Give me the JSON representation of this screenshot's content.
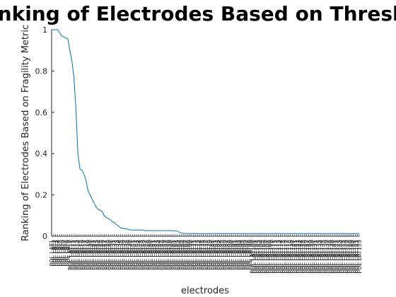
{
  "chart_data": {
    "type": "line",
    "title": "Ranking of Electrodes Based on Threshold",
    "xlabel": "electrodes",
    "ylabel": "Ranking of Electrodes Based on Fragility Metric",
    "ylim": [
      0,
      1
    ],
    "yticks": [
      "0",
      "0.2",
      "0.4",
      "0.6",
      "0.8",
      "1"
    ],
    "grid": false,
    "line_color": "#0072bd",
    "x_categories": [
      "POL LAT1",
      "POL LAT2",
      "POL LAT3",
      "POL LAT4",
      "POL LAT5",
      "POL LAT6",
      "POL LAT7",
      "POL LAT8",
      "POL LAT9",
      "POL LAT10",
      "POL LAT11",
      "POL LAT12",
      "POL LAT13",
      "POL LAT14",
      "POL LAT15",
      "POL LAT16",
      "POL LAT17",
      "POL LAT18",
      "POL LAT19",
      "POL LAT20",
      "POL LAT21",
      "POL LAT22",
      "POL LAT23",
      "POL LAT24",
      "POL LAT25",
      "POL LAT26",
      "POL LAT27",
      "POL LAT28",
      "POL LAT29",
      "POL LAT30",
      "POL LAT31",
      "POL LAT32",
      "POL LAT33",
      "POL LAT34",
      "POL LAT35",
      "POL LAT36",
      "POL LAT37",
      "POL LAT38",
      "POL LAT39",
      "POL LAT40",
      "POL LAT41",
      "POL LAT42",
      "POL LAT43",
      "POL LAT44",
      "POL LAT45",
      "POL LAT46",
      "POL LAT47",
      "POL LAT48",
      "POL LAT49",
      "POL LAT50",
      "POL LAT51",
      "POL LAT52",
      "POL LAT53",
      "POL LAT54",
      "POL LAT55",
      "POL LAT56",
      "POL LAT57",
      "POL LAT58",
      "POL LAT59",
      "POL LAT60",
      "POL LAT61",
      "POL LAT62",
      "POL LAT63",
      "POL LAT64",
      "POL LAT65",
      "POL LAT66",
      "POL LAT67",
      "POL LAT68",
      "POL LAT69",
      "POL LAT70",
      "POL LAT71",
      "POL LAT72",
      "POL LAT73",
      "POL LAT74",
      "POL LAT75",
      "POL LAT76",
      "POL LAT77",
      "POL LAT78",
      "POL LAT79",
      "POL LAT80",
      "POL LAT81",
      "POL LAT82",
      "POL LAT83",
      "POL LAT84",
      "POL LAT85",
      "POL LAT86",
      "POL LAT87",
      "POL LAT88",
      "POL LAT89",
      "POL LAT90",
      "POL LAT91",
      "POL LAT92",
      "POL LAT93",
      "POL LAT94",
      "POL LAT95",
      "POL LAT96",
      "POL LAT97",
      "POL LAT98",
      "POL LAT99",
      "POL LAT100",
      "POL LAT101",
      "POL LAT102",
      "POL LAT103",
      "POL LAT104",
      "POL LAT105",
      "POL LAT106",
      "POL LAT107",
      "POL LAT108",
      "POL LAT109",
      "POL LAT110",
      "POL LAT111",
      "POL LAT112",
      "POL LAT113",
      "POL LAT114",
      "POL LAT115",
      "POL LAT116",
      "POL LAT117",
      "POL LAT118",
      "POL LAT119",
      "POL LAT120",
      "POL LAT121",
      "POL LAT122",
      "POL LAT123",
      "POL LAT124",
      "POL LAT125",
      "POL LAT126",
      "POL LAT127",
      "POL LAT128",
      "POL LAT129",
      "POL LAT130",
      "POL LAT131",
      "POL LAT132",
      "POL LAT133",
      "POL LAT134",
      "POL LAT135",
      "POL LAT136",
      "POL LAT137",
      "POL LAT138",
      "POL LAT139",
      "POL LAT140",
      "POL LAT141",
      "POL LAT142",
      "POL LAT143",
      "POL LAT144",
      "POL LAT145",
      "POL LAT146",
      "POL LAT147",
      "POL LAT148",
      "POL LAT149",
      "POL LAT150",
      "POL LAT151",
      "POL LAT152",
      "POL LAT153"
    ],
    "points": [
      [
        1,
        1.0
      ],
      [
        4,
        1.0
      ],
      [
        6,
        0.97
      ],
      [
        8,
        0.96
      ],
      [
        9,
        0.955
      ],
      [
        10,
        0.9
      ],
      [
        11,
        0.85
      ],
      [
        12,
        0.77
      ],
      [
        13,
        0.62
      ],
      [
        14,
        0.4
      ],
      [
        15,
        0.325
      ],
      [
        16,
        0.32
      ],
      [
        17,
        0.3
      ],
      [
        18,
        0.27
      ],
      [
        19,
        0.22
      ],
      [
        20,
        0.2
      ],
      [
        21,
        0.18
      ],
      [
        22,
        0.16
      ],
      [
        23,
        0.14
      ],
      [
        24,
        0.13
      ],
      [
        26,
        0.12
      ],
      [
        27,
        0.1
      ],
      [
        28,
        0.09
      ],
      [
        30,
        0.08
      ],
      [
        31,
        0.07
      ],
      [
        32,
        0.065
      ],
      [
        33,
        0.055
      ],
      [
        34,
        0.05
      ],
      [
        35,
        0.04
      ],
      [
        38,
        0.035
      ],
      [
        40,
        0.03
      ],
      [
        46,
        0.03
      ],
      [
        47,
        0.027
      ],
      [
        60,
        0.027
      ],
      [
        63,
        0.025
      ],
      [
        65,
        0.015
      ],
      [
        68,
        0.013
      ],
      [
        120,
        0.013
      ],
      [
        153,
        0.013
      ]
    ]
  }
}
